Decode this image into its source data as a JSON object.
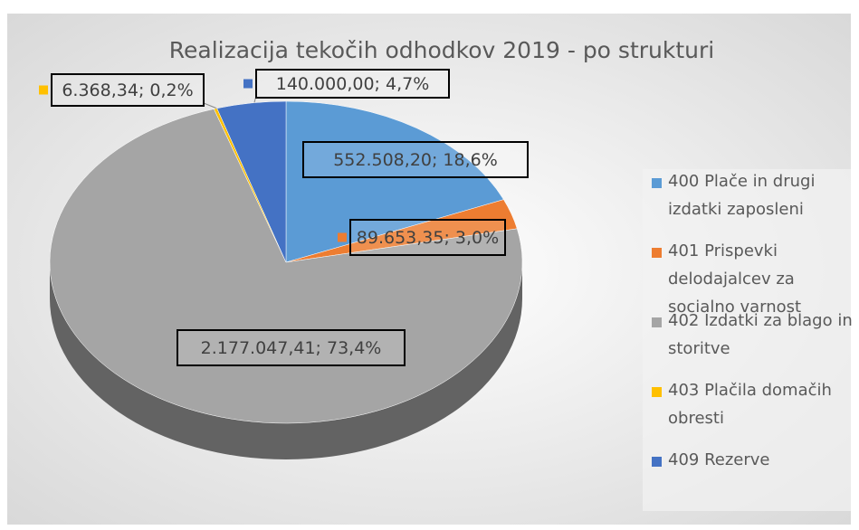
{
  "chart_data": {
    "type": "pie3d",
    "title": "Realizacija tekočih odhodkov 2019 - po strukturi",
    "categories": [
      "400 Plače in drugi izdatki zaposleni",
      "401 Prispevki delodajalcev za socialno varnost",
      "402 Izdatki za blago in storitve",
      "403 Plačila domačih obresti",
      "409 Rezerve"
    ],
    "values": [
      552508.2,
      89653.35,
      2177047.41,
      6368.34,
      140000.0
    ],
    "value_labels": [
      "552.508,20; 18,6%",
      "89.653,35; 3,0%",
      "2.177.047,41; 73,4%",
      "6.368,34; 0,2%",
      "140.000,00; 4,7%"
    ],
    "colors": [
      "#5b9bd5",
      "#ed7d31",
      "#a5a5a5",
      "#ffc000",
      "#4472c4"
    ],
    "legend": "right"
  }
}
